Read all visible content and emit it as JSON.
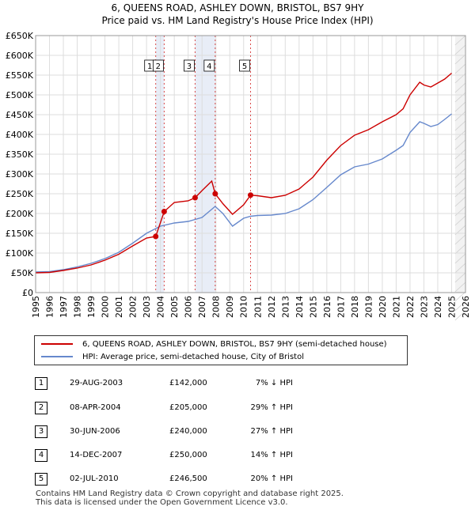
{
  "title_line1": "6, QUEENS ROAD, ASHLEY DOWN, BRISTOL, BS7 9HY",
  "title_line2": "Price paid vs. HM Land Registry's House Price Index (HPI)",
  "colors": {
    "red": "#cc0000",
    "blue": "#6688cc",
    "shade": "#e8edf7",
    "grid": "#dddddd"
  },
  "chart_data": {
    "type": "line",
    "xlim": [
      1995,
      2026
    ],
    "ylim": [
      0,
      650000
    ],
    "x_ticks": [
      "1995",
      "1996",
      "1997",
      "1998",
      "1999",
      "2000",
      "2001",
      "2002",
      "2003",
      "2004",
      "2005",
      "2006",
      "2007",
      "2008",
      "2009",
      "2010",
      "2011",
      "2012",
      "2013",
      "2014",
      "2015",
      "2016",
      "2017",
      "2018",
      "2019",
      "2020",
      "2021",
      "2022",
      "2023",
      "2024",
      "2025",
      "2026"
    ],
    "y_ticks": [
      {
        "value": 0,
        "label": "£0"
      },
      {
        "value": 50000,
        "label": "£50K"
      },
      {
        "value": 100000,
        "label": "£100K"
      },
      {
        "value": 150000,
        "label": "£150K"
      },
      {
        "value": 200000,
        "label": "£200K"
      },
      {
        "value": 250000,
        "label": "£250K"
      },
      {
        "value": 300000,
        "label": "£300K"
      },
      {
        "value": 350000,
        "label": "£350K"
      },
      {
        "value": 400000,
        "label": "£400K"
      },
      {
        "value": 450000,
        "label": "£450K"
      },
      {
        "value": 500000,
        "label": "£500K"
      },
      {
        "value": 550000,
        "label": "£550K"
      },
      {
        "value": 600000,
        "label": "£600K"
      },
      {
        "value": 650000,
        "label": "£650K"
      }
    ],
    "shaded_ranges": [
      [
        2003.66,
        2004.27
      ],
      [
        2006.5,
        2007.95
      ]
    ],
    "series": [
      {
        "name": "6, QUEENS ROAD, ASHLEY DOWN, BRISTOL, BS7 9HY (semi-detached house)",
        "color": "#cc0000",
        "points": [
          [
            1995,
            50000
          ],
          [
            1996,
            51000
          ],
          [
            1997,
            56000
          ],
          [
            1998,
            62000
          ],
          [
            1999,
            70000
          ],
          [
            2000,
            82000
          ],
          [
            2001,
            97000
          ],
          [
            2002,
            118000
          ],
          [
            2003,
            138000
          ],
          [
            2003.66,
            142000
          ],
          [
            2004.27,
            205000
          ],
          [
            2005,
            228000
          ],
          [
            2006,
            232000
          ],
          [
            2006.5,
            240000
          ],
          [
            2007,
            258000
          ],
          [
            2007.7,
            282000
          ],
          [
            2007.95,
            250000
          ],
          [
            2008.5,
            225000
          ],
          [
            2009.2,
            198000
          ],
          [
            2010,
            222000
          ],
          [
            2010.5,
            246500
          ],
          [
            2011,
            245000
          ],
          [
            2012,
            240000
          ],
          [
            2013,
            246000
          ],
          [
            2014,
            262000
          ],
          [
            2015,
            292000
          ],
          [
            2016,
            335000
          ],
          [
            2017,
            372000
          ],
          [
            2018,
            398000
          ],
          [
            2019,
            412000
          ],
          [
            2020,
            432000
          ],
          [
            2021,
            450000
          ],
          [
            2021.5,
            465000
          ],
          [
            2022,
            500000
          ],
          [
            2022.7,
            532000
          ],
          [
            2023,
            525000
          ],
          [
            2023.5,
            520000
          ],
          [
            2024,
            530000
          ],
          [
            2024.5,
            540000
          ],
          [
            2025,
            555000
          ]
        ]
      },
      {
        "name": "HPI: Average price, semi-detached house, City of Bristol",
        "color": "#6688cc",
        "points": [
          [
            1995,
            52000
          ],
          [
            1996,
            53000
          ],
          [
            1997,
            58000
          ],
          [
            1998,
            65000
          ],
          [
            1999,
            74000
          ],
          [
            2000,
            86000
          ],
          [
            2001,
            102000
          ],
          [
            2002,
            125000
          ],
          [
            2003,
            150000
          ],
          [
            2004,
            168000
          ],
          [
            2005,
            176000
          ],
          [
            2006,
            180000
          ],
          [
            2007,
            190000
          ],
          [
            2007.95,
            218000
          ],
          [
            2008.5,
            200000
          ],
          [
            2009.2,
            168000
          ],
          [
            2010,
            188000
          ],
          [
            2010.5,
            193000
          ],
          [
            2011,
            195000
          ],
          [
            2012,
            196000
          ],
          [
            2013,
            200000
          ],
          [
            2014,
            212000
          ],
          [
            2015,
            235000
          ],
          [
            2016,
            266000
          ],
          [
            2017,
            298000
          ],
          [
            2018,
            318000
          ],
          [
            2019,
            325000
          ],
          [
            2020,
            338000
          ],
          [
            2021,
            360000
          ],
          [
            2021.5,
            372000
          ],
          [
            2022,
            405000
          ],
          [
            2022.7,
            432000
          ],
          [
            2023,
            428000
          ],
          [
            2023.5,
            420000
          ],
          [
            2024,
            425000
          ],
          [
            2024.5,
            438000
          ],
          [
            2025,
            452000
          ]
        ]
      }
    ],
    "sales": [
      {
        "n": "1",
        "x": 2003.66,
        "y": 142000
      },
      {
        "n": "2",
        "x": 2004.27,
        "y": 205000
      },
      {
        "n": "3",
        "x": 2006.5,
        "y": 240000
      },
      {
        "n": "4",
        "x": 2007.95,
        "y": 250000
      },
      {
        "n": "5",
        "x": 2010.5,
        "y": 246500
      }
    ]
  },
  "legend": {
    "red_label": "6, QUEENS ROAD, ASHLEY DOWN, BRISTOL, BS7 9HY (semi-detached house)",
    "blue_label": "HPI: Average price, semi-detached house, City of Bristol"
  },
  "transactions": [
    {
      "n": "1",
      "date": "29-AUG-2003",
      "price": "£142,000",
      "hpi": "7% ↓ HPI"
    },
    {
      "n": "2",
      "date": "08-APR-2004",
      "price": "£205,000",
      "hpi": "29% ↑ HPI"
    },
    {
      "n": "3",
      "date": "30-JUN-2006",
      "price": "£240,000",
      "hpi": "27% ↑ HPI"
    },
    {
      "n": "4",
      "date": "14-DEC-2007",
      "price": "£250,000",
      "hpi": "14% ↑ HPI"
    },
    {
      "n": "5",
      "date": "02-JUL-2010",
      "price": "£246,500",
      "hpi": "20% ↑ HPI"
    }
  ],
  "footer_line1": "Contains HM Land Registry data © Crown copyright and database right 2025.",
  "footer_line2": "This data is licensed under the Open Government Licence v3.0."
}
